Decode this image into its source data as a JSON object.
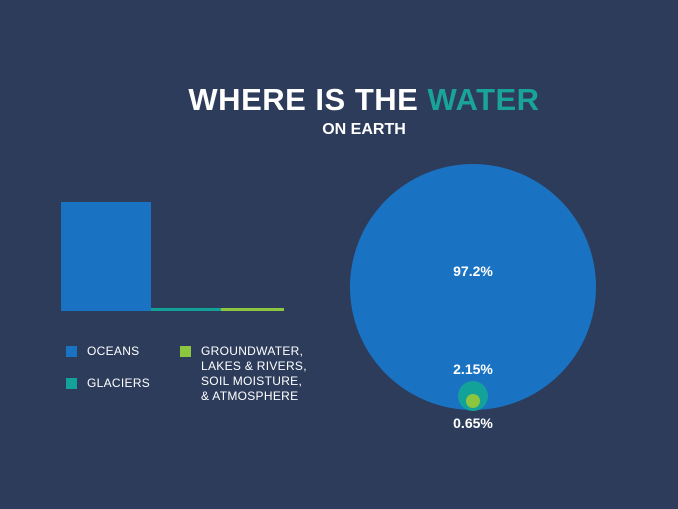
{
  "title": {
    "part1": "WHERE IS THE ",
    "part2": "WATER"
  },
  "subtitle": "ON EARTH",
  "colors": {
    "background": "#2d3c5b",
    "oceans": "#1a73c2",
    "glaciers": "#13a29a",
    "groundwater": "#8cc63f",
    "accent": "#1aa39a"
  },
  "legend": {
    "oceans": "OCEANS",
    "glaciers": "GLACIERS",
    "groundwater": [
      "GROUNDWATER,",
      "LAKES & RIVERS,",
      "SOIL MOISTURE,",
      "& ATMOSPHERE"
    ]
  },
  "chart_data": [
    {
      "type": "bar",
      "categories": [
        "OCEANS",
        "GLACIERS",
        "GROUNDWATER, LAKES & RIVERS, SOIL MOISTURE, & ATMOSPHERE"
      ],
      "values": [
        97.2,
        2.15,
        0.65
      ],
      "colors": [
        "#1a73c2",
        "#13a29a",
        "#8cc63f"
      ]
    },
    {
      "type": "pie",
      "categories": [
        "OCEANS",
        "GLACIERS",
        "GROUNDWATER, LAKES & RIVERS, SOIL MOISTURE, & ATMOSPHERE"
      ],
      "values": [
        97.2,
        2.15,
        0.65
      ],
      "labels": [
        "97.2%",
        "2.15%",
        "0.65%"
      ],
      "colors": [
        "#1a73c2",
        "#13a29a",
        "#8cc63f"
      ]
    }
  ]
}
